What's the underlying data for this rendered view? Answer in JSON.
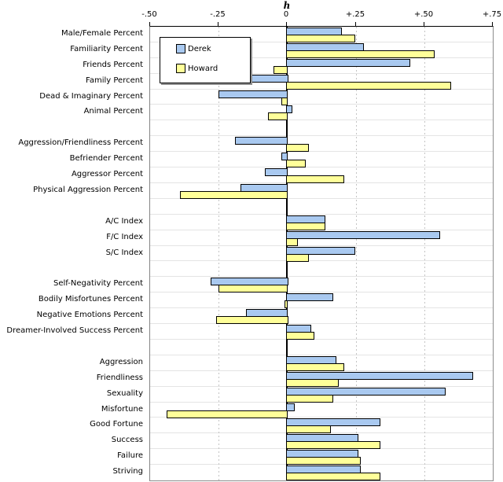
{
  "chart_data": {
    "type": "bar",
    "orientation": "horizontal",
    "title": "h",
    "xlim": [
      -0.5,
      0.75
    ],
    "grid": "dashed-vertical",
    "legend_position": "top-left",
    "axis_ticks": [
      {
        "label": "-.50",
        "value": -0.5
      },
      {
        "label": "-.25",
        "value": -0.25
      },
      {
        "label": "0",
        "value": 0
      },
      {
        "label": "+.25",
        "value": 0.25
      },
      {
        "label": "+.50",
        "value": 0.5
      },
      {
        "label": "+.75",
        "value": 0.75
      }
    ],
    "dashed_gridlines": [
      -0.25,
      0.25,
      0.5
    ],
    "series": [
      {
        "name": "Derek",
        "color": "#a9c9f0"
      },
      {
        "name": "Howard",
        "color": "#ffff99"
      }
    ],
    "rows": [
      {
        "label": "Male/Female Percent",
        "values": [
          0.2,
          0.25
        ]
      },
      {
        "label": "Familiarity Percent",
        "values": [
          0.28,
          0.54
        ]
      },
      {
        "label": "Friends Percent",
        "values": [
          0.45,
          -0.05
        ]
      },
      {
        "label": "Family Percent",
        "values": [
          -0.14,
          0.6
        ]
      },
      {
        "label": "Dead & Imaginary Percent",
        "values": [
          -0.25,
          -0.02
        ]
      },
      {
        "label": "Animal Percent",
        "values": [
          0.02,
          -0.07
        ]
      },
      {
        "gap": true
      },
      {
        "label": "Aggression/Friendliness Percent",
        "values": [
          -0.19,
          0.08
        ]
      },
      {
        "label": "Befriender Percent",
        "values": [
          -0.02,
          0.07
        ]
      },
      {
        "label": "Aggressor Percent",
        "values": [
          -0.08,
          0.21
        ]
      },
      {
        "label": "Physical Aggression Percent",
        "values": [
          -0.17,
          -0.39
        ]
      },
      {
        "gap": true
      },
      {
        "label": "A/C Index",
        "values": [
          0.14,
          0.14
        ]
      },
      {
        "label": "F/C Index",
        "values": [
          0.56,
          0.04
        ]
      },
      {
        "label": "S/C Index",
        "values": [
          0.25,
          0.08
        ]
      },
      {
        "gap": true
      },
      {
        "label": "Self-Negativity Percent",
        "values": [
          -0.28,
          -0.25
        ]
      },
      {
        "label": "Bodily Misfortunes Percent",
        "values": [
          0.17,
          -0.01
        ]
      },
      {
        "label": "Negative Emotions Percent",
        "values": [
          -0.15,
          -0.26
        ]
      },
      {
        "label": "Dreamer-Involved Success Percent",
        "values": [
          0.09,
          0.1
        ]
      },
      {
        "gap": true
      },
      {
        "label": "Aggression",
        "values": [
          0.18,
          0.21
        ]
      },
      {
        "label": "Friendliness",
        "values": [
          0.68,
          0.19
        ]
      },
      {
        "label": "Sexuality",
        "values": [
          0.58,
          0.17
        ]
      },
      {
        "label": "Misfortune",
        "values": [
          0.03,
          -0.44
        ]
      },
      {
        "label": "Good Fortune",
        "values": [
          0.34,
          0.16
        ]
      },
      {
        "label": "Success",
        "values": [
          0.26,
          0.34
        ]
      },
      {
        "label": "Failure",
        "values": [
          0.26,
          0.27
        ]
      },
      {
        "label": "Striving",
        "values": [
          0.27,
          0.34
        ]
      }
    ],
    "style_colors": {
      "bar_border": "#000000",
      "zero_line": "#000000",
      "dashed_grid": "#c4c4c4",
      "row_separator": "#e4e4e4",
      "plot_border": "#8c8c8c"
    }
  }
}
